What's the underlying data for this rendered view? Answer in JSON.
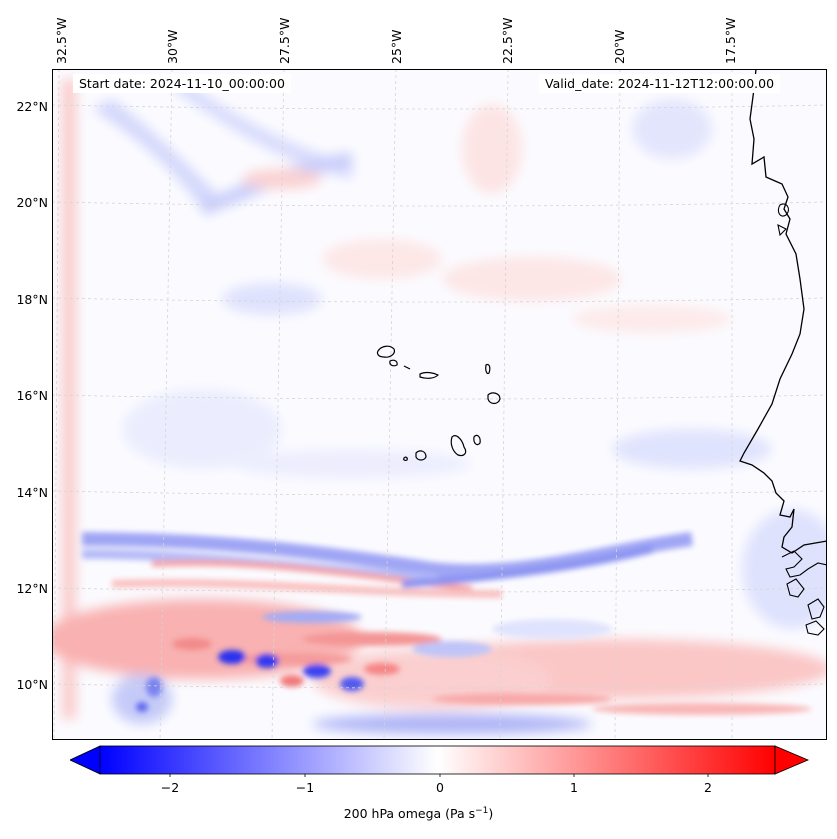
{
  "map": {
    "start_date": "Start date: 2024-11-10_00:00:00",
    "valid_date": "Valid_date: 2024-11-12T12:00:00.00",
    "lat_labels": [
      "22°N",
      "20°N",
      "18°N",
      "16°N",
      "14°N",
      "12°N",
      "10°N"
    ],
    "lon_labels": [
      "32.5°W",
      "30°W",
      "27.5°W",
      "25°W",
      "22.5°W",
      "20°W",
      "17.5°W"
    ],
    "features": [
      "Cape Verde islands",
      "West African coastline"
    ]
  },
  "colorbar": {
    "ticks": [
      "−2",
      "−1",
      "0",
      "1",
      "2"
    ],
    "label": "200 hPa omega (Pa s",
    "label_exp": "−1",
    "label_close": ")",
    "colors": {
      "negative": "#0000ff",
      "neutral": "#ffffff",
      "positive": "#ff0000"
    }
  }
}
